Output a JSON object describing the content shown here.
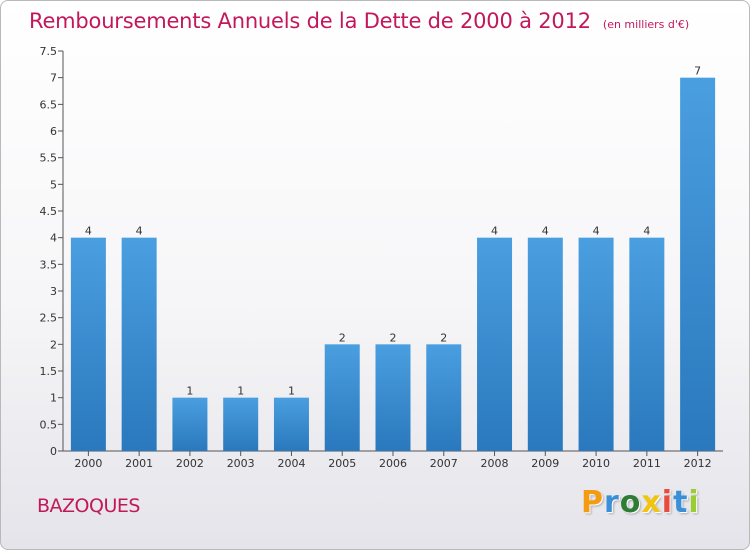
{
  "title": "Remboursements Annuels de la Dette de 2000 à 2012",
  "unit": "(en milliers d'€)",
  "town": "BAZOQUES",
  "logo": {
    "letters": [
      "P",
      "r",
      "o",
      "x",
      "i",
      "t",
      "i"
    ],
    "colors": [
      "#f39c12",
      "#3a8fd6",
      "#2e7d32",
      "#f1c40f",
      "#e74c3c",
      "#3a8fd6",
      "#9acd32"
    ]
  },
  "colors": {
    "bar": "#4a9fe0",
    "bar_dark": "#2a78bd",
    "title": "#c2185b"
  },
  "chart_data": {
    "type": "bar",
    "categories": [
      "2000",
      "2001",
      "2002",
      "2003",
      "2004",
      "2005",
      "2006",
      "2007",
      "2008",
      "2009",
      "2010",
      "2011",
      "2012"
    ],
    "values": [
      4,
      4,
      1,
      1,
      1,
      2,
      2,
      2,
      4,
      4,
      4,
      4,
      7
    ],
    "ylim": [
      0,
      7.5
    ],
    "yticks": [
      "0",
      "0.5",
      "1",
      "1.5",
      "2",
      "2.5",
      "3",
      "3.5",
      "4",
      "4.5",
      "5",
      "5.5",
      "6",
      "6.5",
      "7",
      "7.5"
    ],
    "grid": false
  }
}
